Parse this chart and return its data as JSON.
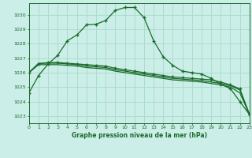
{
  "title": "Graphe pression niveau de la mer (hPa)",
  "bg_color": "#cceee8",
  "grid_color": "#aaddcc",
  "line_color": "#1a6b2a",
  "text_color": "#1a6b2a",
  "xlim": [
    0,
    23
  ],
  "ylim": [
    1022.5,
    1030.8
  ],
  "yticks": [
    1023,
    1024,
    1025,
    1026,
    1027,
    1028,
    1029,
    1030
  ],
  "xticks": [
    0,
    1,
    2,
    3,
    4,
    5,
    6,
    7,
    8,
    9,
    10,
    11,
    12,
    13,
    14,
    15,
    16,
    17,
    18,
    19,
    20,
    21,
    22,
    23
  ],
  "series": [
    [
      1024.6,
      1025.8,
      1026.6,
      1027.2,
      1028.2,
      1028.6,
      1029.3,
      1029.35,
      1029.6,
      1030.3,
      1030.5,
      1030.5,
      1029.8,
      1028.2,
      1027.1,
      1026.5,
      1026.1,
      1026.0,
      1025.9,
      1025.6,
      1025.2,
      1024.9,
      1024.0,
      1023.1
    ],
    [
      1026.0,
      1026.65,
      1026.65,
      1026.65,
      1026.6,
      1026.55,
      1026.45,
      1026.4,
      1026.35,
      1026.2,
      1026.1,
      1026.0,
      1025.9,
      1025.8,
      1025.7,
      1025.6,
      1025.55,
      1025.5,
      1025.45,
      1025.35,
      1025.25,
      1025.1,
      1024.8,
      1023.1
    ],
    [
      1026.0,
      1026.55,
      1026.55,
      1026.55,
      1026.5,
      1026.45,
      1026.35,
      1026.3,
      1026.25,
      1026.1,
      1026.0,
      1025.9,
      1025.8,
      1025.7,
      1025.6,
      1025.5,
      1025.45,
      1025.4,
      1025.35,
      1025.25,
      1025.15,
      1025.0,
      1024.6,
      1023.1
    ],
    [
      1026.0,
      1026.6,
      1026.7,
      1026.7,
      1026.65,
      1026.6,
      1026.55,
      1026.5,
      1026.45,
      1026.3,
      1026.2,
      1026.1,
      1026.0,
      1025.9,
      1025.8,
      1025.7,
      1025.65,
      1025.6,
      1025.55,
      1025.5,
      1025.35,
      1025.15,
      1024.88,
      1023.1
    ]
  ],
  "markers": [
    true,
    false,
    false,
    true
  ]
}
